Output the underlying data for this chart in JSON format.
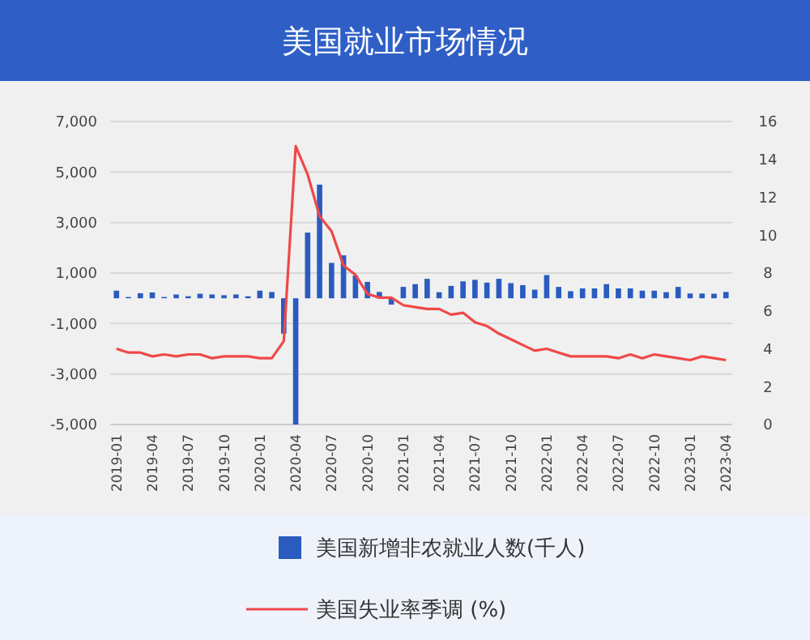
{
  "chart_data": {
    "type": "bar",
    "title": "美国就业市场情况",
    "categories": [
      "2019-01",
      null,
      null,
      "2019-04",
      null,
      null,
      "2019-07",
      null,
      null,
      "2019-10",
      null,
      null,
      "2020-01",
      null,
      null,
      "2020-04",
      null,
      null,
      "2020-07",
      null,
      null,
      "2020-10",
      null,
      null,
      "2021-01",
      null,
      null,
      "2021-04",
      null,
      null,
      "2021-07",
      null,
      null,
      "2021-10",
      null,
      null,
      "2022-01",
      null,
      null,
      "2022-04",
      null,
      null,
      "2022-07",
      null,
      null,
      "2022-10",
      null,
      null,
      "2023-01",
      null,
      null,
      "2023-04"
    ],
    "series": [
      {
        "name": "美国新增非农就业人数(千人)",
        "color": "#2a5bbf",
        "values": [
          300,
          50,
          200,
          230,
          50,
          150,
          80,
          180,
          150,
          120,
          150,
          80,
          300,
          250,
          -1400,
          -5000,
          2600,
          4500,
          1400,
          1700,
          900,
          650,
          250,
          -250,
          450,
          560,
          770,
          240,
          490,
          670,
          730,
          620,
          770,
          600,
          520,
          340,
          920,
          450,
          280,
          390,
          390,
          560,
          390,
          390,
          300,
          300,
          240,
          450,
          190,
          190,
          180,
          250
        ]
      },
      {
        "name": "美国失业率季调 (%)",
        "type": "line",
        "axis": "y2",
        "color": "#f04848",
        "values": [
          4.0,
          3.8,
          3.8,
          3.6,
          3.7,
          3.6,
          3.7,
          3.7,
          3.5,
          3.6,
          3.6,
          3.6,
          3.5,
          3.5,
          4.4,
          14.7,
          13.2,
          11.0,
          10.2,
          8.4,
          7.9,
          6.9,
          6.7,
          6.7,
          6.3,
          6.2,
          6.1,
          6.1,
          5.8,
          5.9,
          5.4,
          5.2,
          4.8,
          4.5,
          4.2,
          3.9,
          4.0,
          3.8,
          3.6,
          3.6,
          3.6,
          3.6,
          3.5,
          3.7,
          3.5,
          3.7,
          3.6,
          3.5,
          3.4,
          3.6,
          3.5,
          3.4
        ]
      }
    ],
    "ylim": [
      -5000,
      7000
    ],
    "yticks": [
      {
        "value": -5000,
        "label": "-5,000"
      },
      {
        "value": -3000,
        "label": "-3,000"
      },
      {
        "value": -1000,
        "label": "-1,000"
      },
      {
        "value": 1000,
        "label": "1,000"
      },
      {
        "value": 3000,
        "label": "3,000"
      },
      {
        "value": 5000,
        "label": "5,000"
      },
      {
        "value": 7000,
        "label": "7,000"
      }
    ],
    "y2lim": [
      0,
      16
    ],
    "y2ticks": [
      0,
      2,
      4,
      6,
      8,
      10,
      12,
      14,
      16
    ],
    "grid": "y",
    "legend": "bottom",
    "marker": "none",
    "line_style": "solid"
  }
}
